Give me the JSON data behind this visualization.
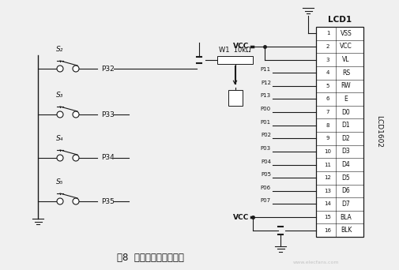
{
  "title": "图8  按键控制与显示电路",
  "lcd_label": "LCD1",
  "lcd_model": "LCD1602",
  "lcd_pins_right": [
    "VSS",
    "VCC",
    "VL",
    "RS",
    "RW",
    "E",
    "D0",
    "D1",
    "D2",
    "D3",
    "D4",
    "D5",
    "D6",
    "D7",
    "BLA",
    "BLK"
  ],
  "lcd_pin_numbers": [
    1,
    2,
    3,
    4,
    5,
    6,
    7,
    8,
    9,
    10,
    11,
    12,
    13,
    14,
    15,
    16
  ],
  "lcd_pin_signals": [
    "",
    "",
    "",
    "P11",
    "P12",
    "P13",
    "P00",
    "P01",
    "P02",
    "P03",
    "P04",
    "P05",
    "P06",
    "P07",
    "",
    ""
  ],
  "potentiometer_label": "W1  10kΩ",
  "vcc_label": "VCC",
  "bg_color": "#f0f0f0",
  "line_color": "#1a1a1a",
  "text_color": "#111111",
  "font_size": 6.5,
  "title_font_size": 8.5,
  "watermark": "www.elecfans.com"
}
